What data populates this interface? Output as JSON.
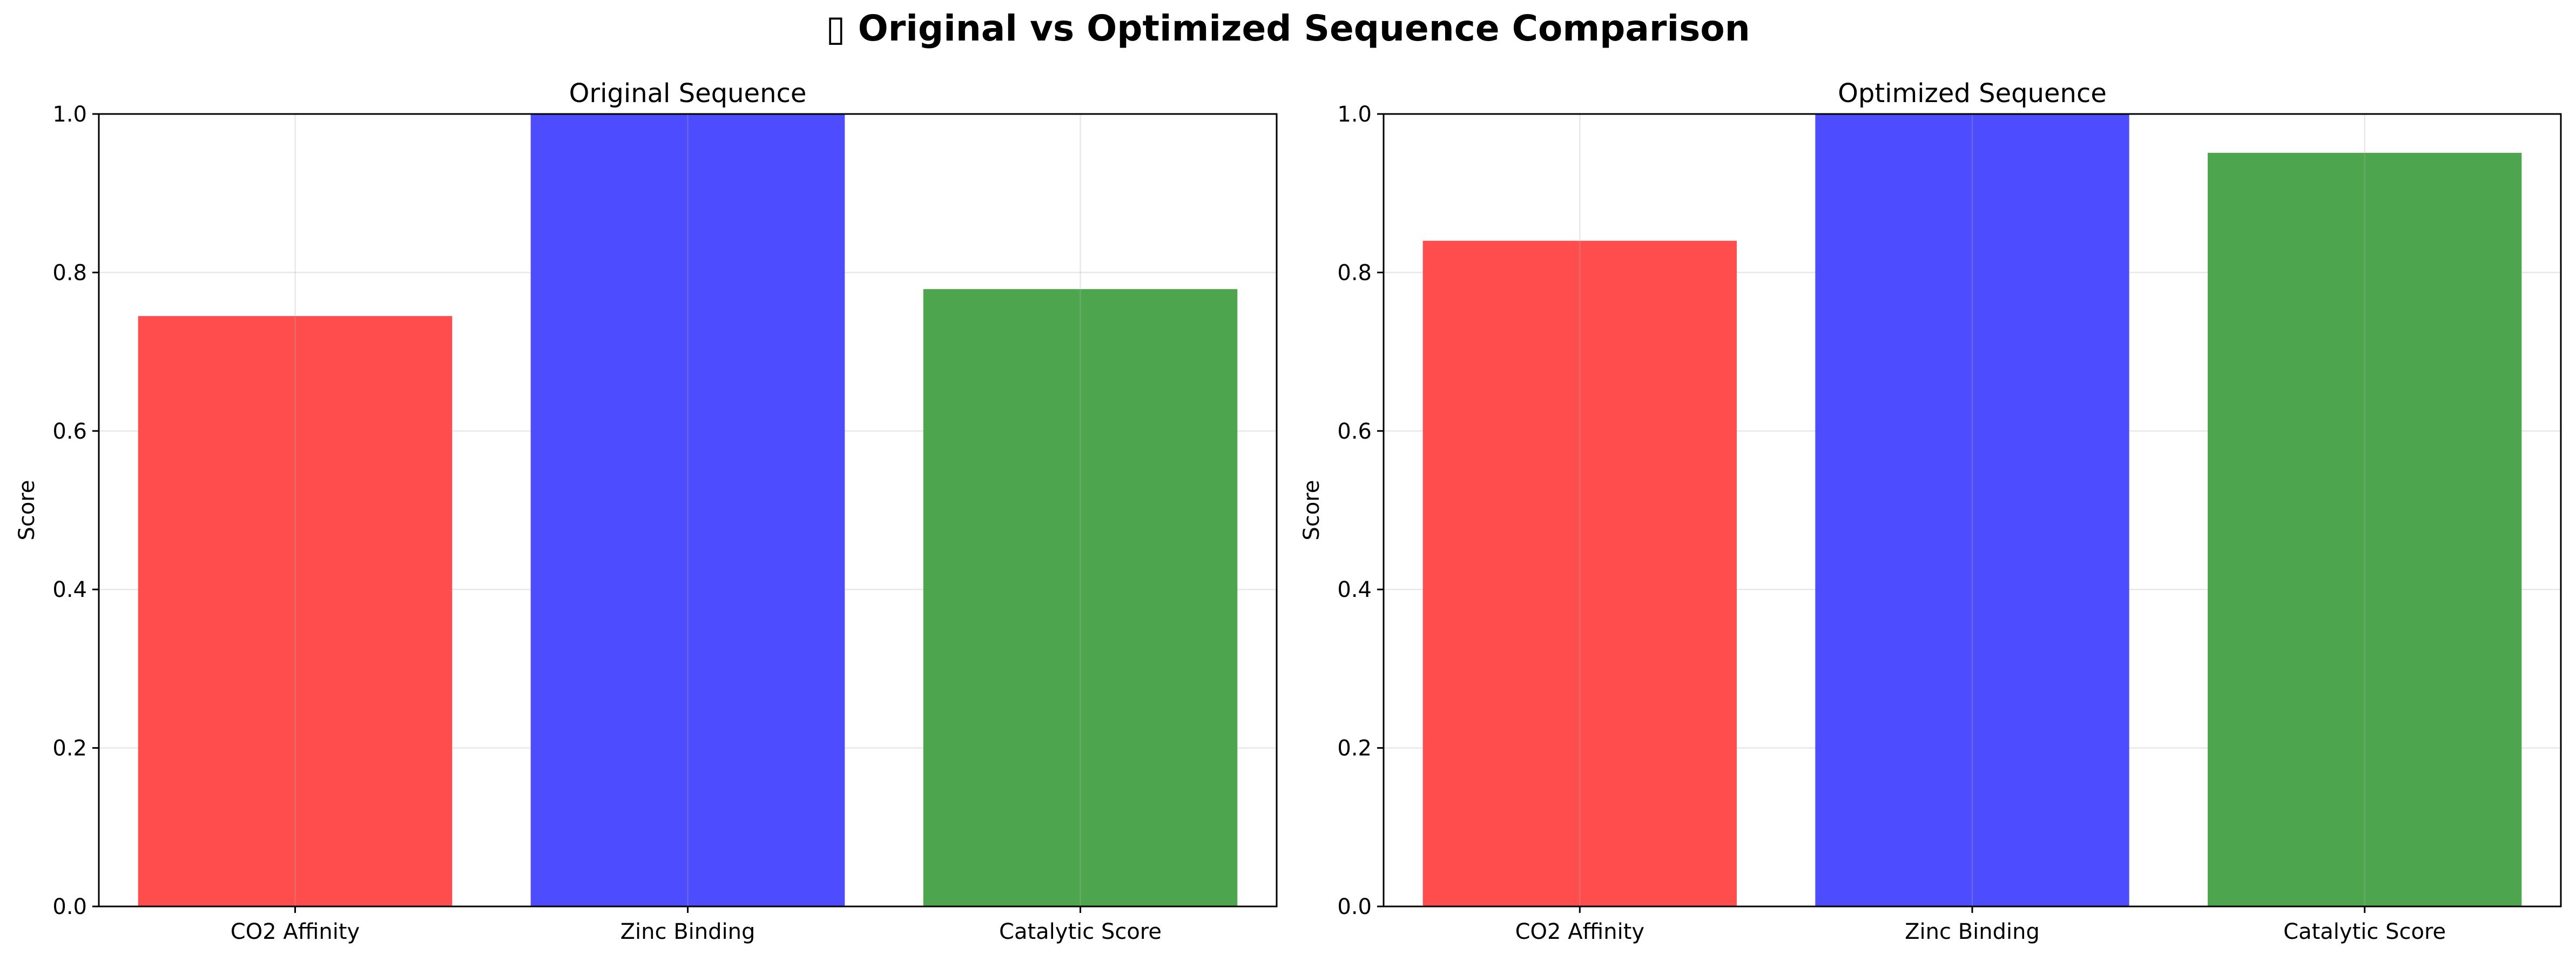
{
  "figure": {
    "suptitle": "▯ Original vs Optimized Sequence Comparison"
  },
  "chart_data": [
    {
      "type": "bar",
      "title": "Original Sequence",
      "xlabel": "",
      "ylabel": "Score",
      "categories": [
        "CO2 Affinity",
        "Zinc Binding",
        "Catalytic Score"
      ],
      "values": [
        0.745,
        1.0,
        0.779
      ],
      "colors": [
        "#ff4d4d",
        "#4d4dff",
        "#4da64d"
      ],
      "ylim": [
        0,
        1.0
      ],
      "yticks": [
        0.0,
        0.2,
        0.4,
        0.6,
        0.8,
        1.0
      ],
      "ytick_labels": [
        "0.0",
        "0.2",
        "0.4",
        "0.6",
        "0.8",
        "1.0"
      ],
      "grid": true
    },
    {
      "type": "bar",
      "title": "Optimized Sequence",
      "xlabel": "",
      "ylabel": "Score",
      "categories": [
        "CO2 Affinity",
        "Zinc Binding",
        "Catalytic Score"
      ],
      "values": [
        0.84,
        1.0,
        0.951
      ],
      "colors": [
        "#ff4d4d",
        "#4d4dff",
        "#4da64d"
      ],
      "ylim": [
        0,
        1.0
      ],
      "yticks": [
        0.0,
        0.2,
        0.4,
        0.6,
        0.8,
        1.0
      ],
      "ytick_labels": [
        "0.0",
        "0.2",
        "0.4",
        "0.6",
        "0.8",
        "1.0"
      ],
      "grid": true
    }
  ]
}
